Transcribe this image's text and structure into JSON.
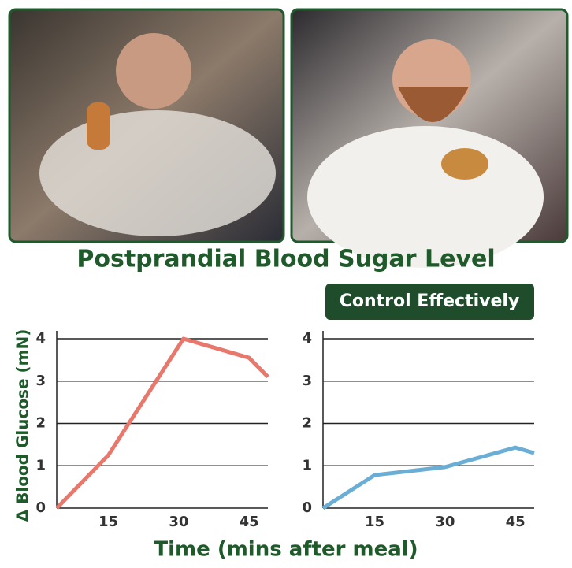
{
  "title": "Postprandial Blood Sugar Level",
  "badge": "Control Effectively",
  "axis_labels": {
    "x": "Time (mins after meal)",
    "y": "Δ Blood Glucose (mN)"
  },
  "chart_data": [
    {
      "type": "line",
      "x": [
        4,
        15,
        31,
        45,
        49
      ],
      "series": [
        {
          "color": "#e8776c",
          "values": [
            0,
            1.25,
            4,
            3.55,
            3.1
          ]
        }
      ],
      "xlim": [
        4,
        49
      ],
      "ylim": [
        0,
        4
      ],
      "xticks": [
        15,
        30,
        45
      ],
      "yticks": [
        0,
        1,
        2,
        3,
        4
      ],
      "grid": true
    },
    {
      "type": "line",
      "x": [
        4,
        15,
        30,
        45,
        49
      ],
      "series": [
        {
          "color": "#6aaed6",
          "values": [
            0,
            0.78,
            0.97,
            1.43,
            1.3
          ]
        }
      ],
      "xlim": [
        4,
        49
      ],
      "ylim": [
        0,
        4
      ],
      "xticks": [
        15,
        30,
        45
      ],
      "yticks": [
        0,
        1,
        2,
        3,
        4
      ],
      "grid": true
    }
  ]
}
